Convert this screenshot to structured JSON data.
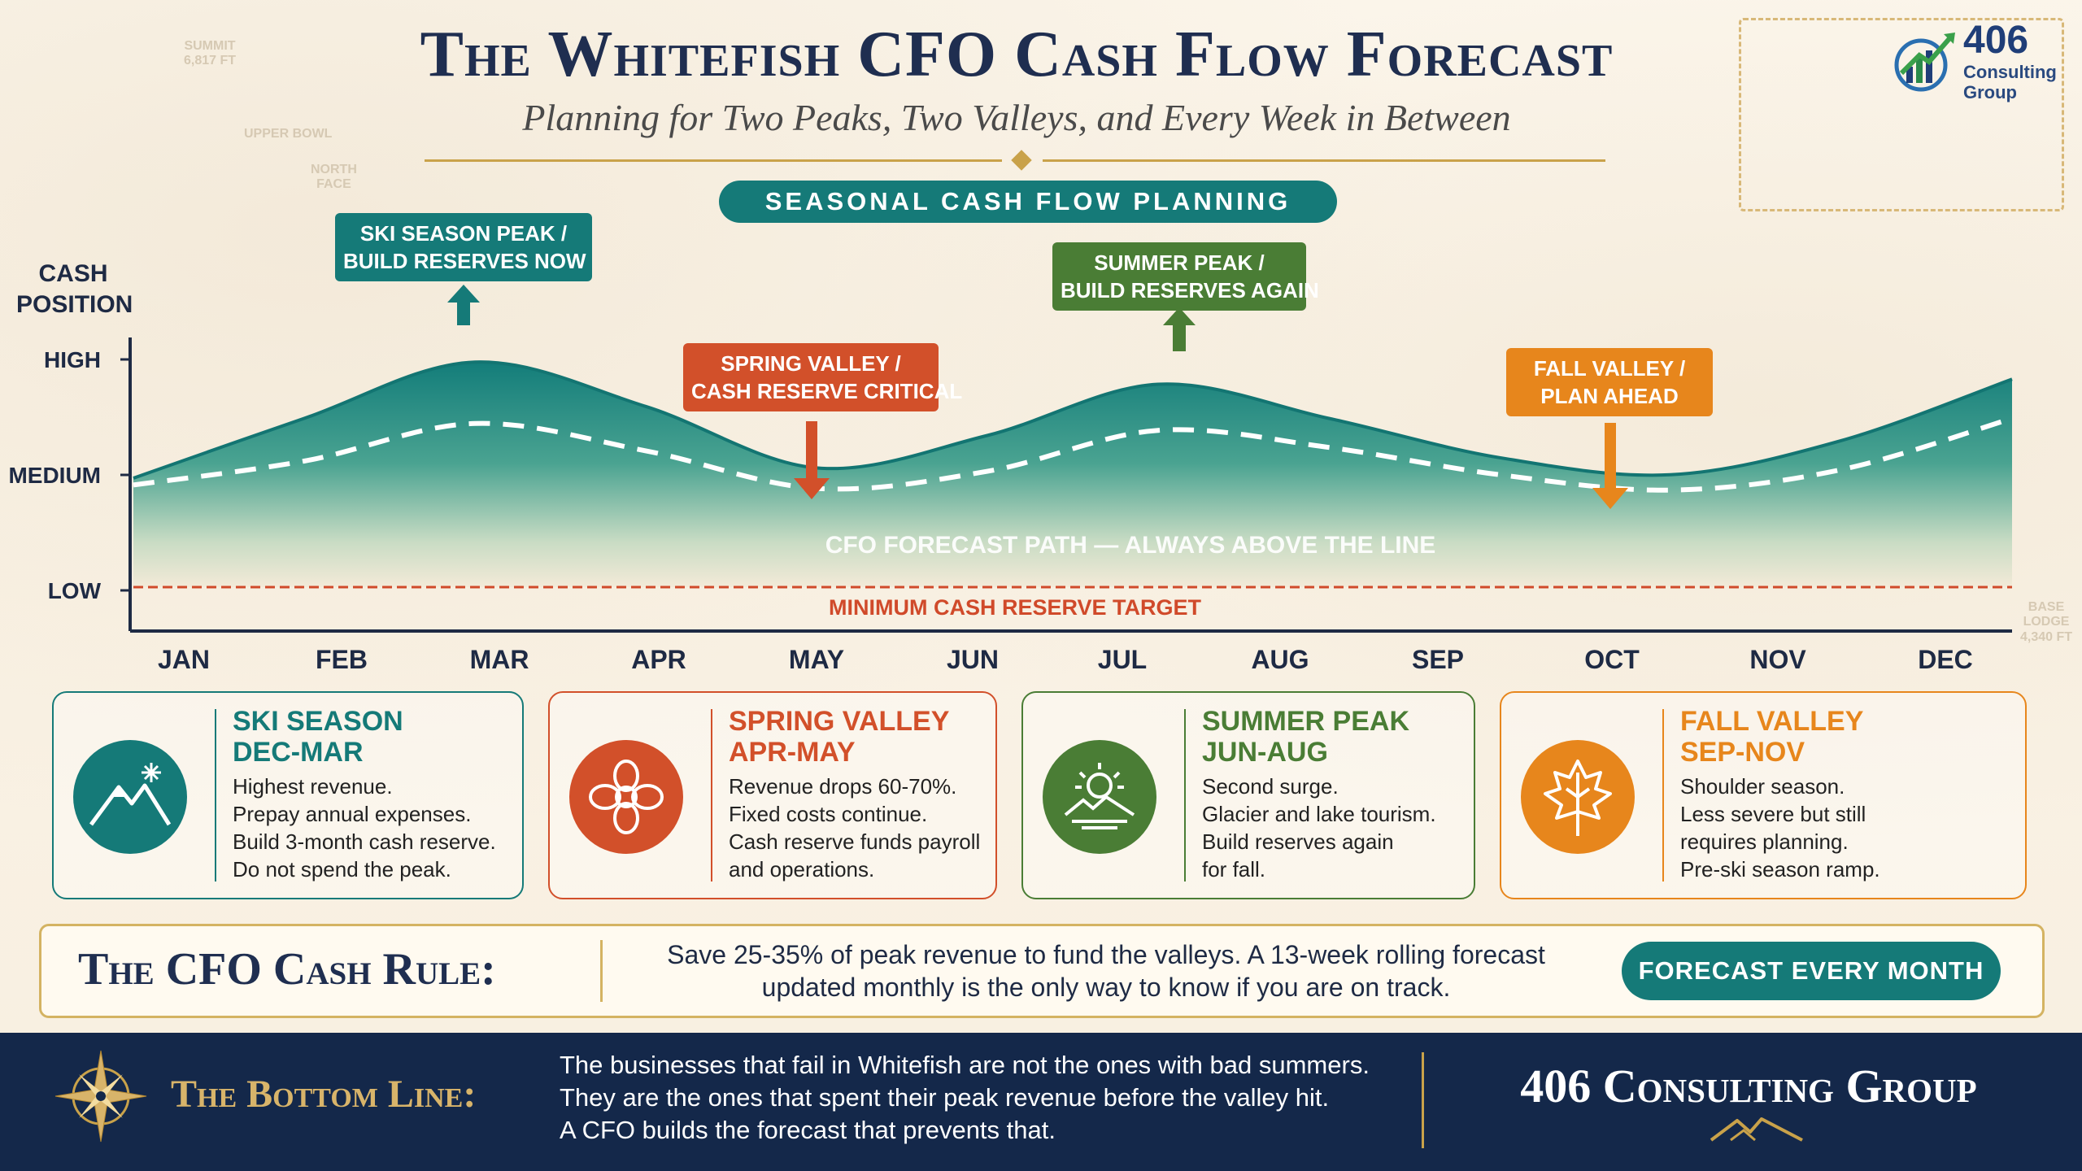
{
  "header": {
    "title": "The Whitefish CFO Cash Flow Forecast",
    "subtitle": "Planning for Two Peaks, Two Valleys, and Every Week in Between",
    "section_pill": "SEASONAL CASH FLOW PLANNING"
  },
  "logo": {
    "number": "406",
    "line1": "Consulting",
    "line2": "Group"
  },
  "background_labels": {
    "summit": [
      "SUMMIT",
      "6,817 FT"
    ],
    "upper_bowl": "UPPER BOWL",
    "north_face": [
      "NORTH",
      "FACE"
    ],
    "base_lodge": [
      "BASE",
      "LODGE",
      "4,340 FT"
    ]
  },
  "chart_data": {
    "type": "area",
    "ylabel": "CASH POSITION",
    "y_ticks": [
      "HIGH",
      "MEDIUM",
      "LOW"
    ],
    "categories": [
      "JAN",
      "FEB",
      "MAR",
      "APR",
      "MAY",
      "JUN",
      "JUL",
      "AUG",
      "SEP",
      "OCT",
      "NOV",
      "DEC"
    ],
    "series": [
      {
        "name": "",
        "style": "filled-area",
        "color": "#1a7f7a",
        "values": [
          0.2,
          0.55,
          0.88,
          0.62,
          0.26,
          0.45,
          0.75,
          0.55,
          0.32,
          0.22,
          0.42,
          0.78
        ]
      },
      {
        "name": "CFO FORECAST PATH — ALWAYS ABOVE THE LINE",
        "style": "dashed",
        "color": "#ffffff",
        "values": [
          0.16,
          0.3,
          0.52,
          0.36,
          0.14,
          0.24,
          0.48,
          0.38,
          0.22,
          0.13,
          0.25,
          0.55
        ]
      }
    ],
    "threshold": {
      "label": "MINIMUM CASH RESERVE TARGET",
      "value": 0,
      "color": "#d04a2a"
    },
    "callouts": [
      {
        "lines": [
          "SKI SEASON PEAK /",
          "BUILD RESERVES NOW"
        ],
        "color": "#157a78",
        "arrow": "up"
      },
      {
        "lines": [
          "SPRING VALLEY /",
          "CASH RESERVE CRITICAL"
        ],
        "color": "#d2502a",
        "arrow": "down"
      },
      {
        "lines": [
          "SUMMER PEAK /",
          "BUILD RESERVES AGAIN"
        ],
        "color": "#4a7d35",
        "arrow": "up"
      },
      {
        "lines": [
          "FALL VALLEY /",
          "PLAN AHEAD"
        ],
        "color": "#e7861c",
        "arrow": "down"
      }
    ]
  },
  "cards": [
    {
      "title1": "SKI SEASON",
      "title2": "DEC-MAR",
      "icon": "snow-mountain-icon",
      "color": "#157a78",
      "body": "Highest revenue.\nPrepay annual expenses.\nBuild 3-month cash reserve.\nDo not spend the peak."
    },
    {
      "title1": "SPRING VALLEY",
      "title2": "APR-MAY",
      "icon": "flower-icon",
      "color": "#d2502a",
      "body": "Revenue drops 60-70%.\nFixed costs continue.\nCash reserve funds payroll\nand operations."
    },
    {
      "title1": "SUMMER PEAK",
      "title2": "JUN-AUG",
      "icon": "sun-lake-icon",
      "color": "#4a7d35",
      "body": "Second surge.\nGlacier and lake tourism.\nBuild reserves again\nfor fall."
    },
    {
      "title1": "FALL VALLEY",
      "title2": "SEP-NOV",
      "icon": "leaf-icon",
      "color": "#e7861c",
      "body": "Shoulder season.\nLess severe but still\nrequires planning.\nPre-ski season ramp."
    }
  ],
  "rule": {
    "title": "The CFO Cash Rule:",
    "text": "Save 25-35% of peak revenue to fund the valleys. A 13-week rolling forecast updated monthly is the only way to know if you are on track.",
    "button": "FORECAST EVERY MONTH"
  },
  "footer": {
    "bottom_line_title": "The Bottom Line:",
    "lines": [
      "The businesses that fail in Whitefish are not the ones with bad summers.",
      "They are the ones that spent their peak revenue before the valley hit.",
      "A CFO builds the forecast that prevents that."
    ],
    "brand": "406 Consulting Group"
  }
}
